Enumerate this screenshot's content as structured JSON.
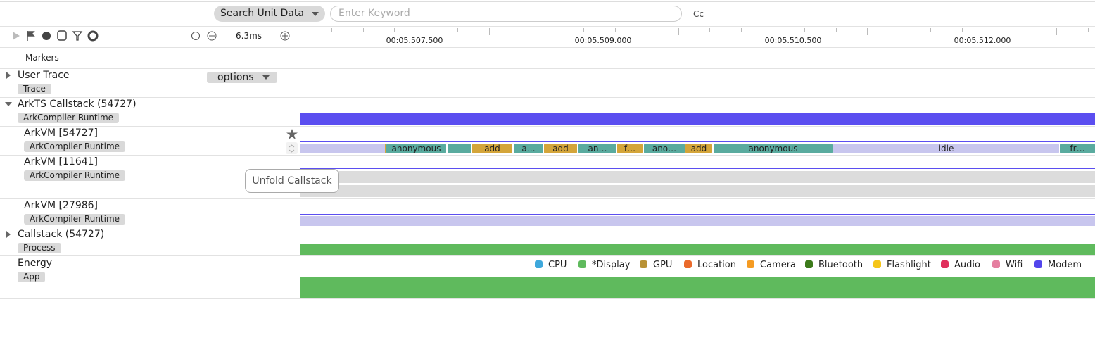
{
  "toolbar": {
    "search_mode": "Search Unit Data",
    "search_placeholder": "Enter Keyword",
    "case_toggle": "Cc",
    "zoom_level": "6.3ms"
  },
  "timeline": {
    "ticks": [
      "00:05.507.500",
      "00:05.509.000",
      "00:05.510.500",
      "00:05.512.000"
    ]
  },
  "tracks": [
    {
      "name": "Markers"
    },
    {
      "name": "User Trace",
      "tag": "Trace",
      "button": "options"
    },
    {
      "name": "ArkTS Callstack (54727)",
      "tag": "ArkCompiler Runtime"
    },
    {
      "name": "ArkVM [54727]",
      "tag": "ArkCompiler Runtime"
    },
    {
      "name": "ArkVM [11641]",
      "tag": "ArkCompiler Runtime"
    },
    {
      "name": "ArkVM [27986]",
      "tag": "ArkCompiler Runtime"
    },
    {
      "name": "Callstack (54727)",
      "tag": "Process"
    },
    {
      "name": "Energy",
      "tag": "App"
    }
  ],
  "slices": [
    {
      "label": "anonymous",
      "color": "#5aab9f"
    },
    {
      "label": "add",
      "color": "#d4a53a"
    },
    {
      "label": "a…",
      "color": "#5aab9f"
    },
    {
      "label": "add",
      "color": "#d4a53a"
    },
    {
      "label": "an…",
      "color": "#5aab9f"
    },
    {
      "label": "f…",
      "color": "#d4a53a"
    },
    {
      "label": "ano…",
      "color": "#5aab9f"
    },
    {
      "label": "add",
      "color": "#d4a53a"
    },
    {
      "label": "anonymous",
      "color": "#5aab9f"
    },
    {
      "label": "idle",
      "color": "#c8c6ee"
    },
    {
      "label": "fr…",
      "color": "#5aab9f"
    }
  ],
  "tooltip": "Unfold Callstack",
  "legend": [
    {
      "name": "CPU",
      "color": "#3ea8dc"
    },
    {
      "name": "*Display",
      "color": "#5fba5d"
    },
    {
      "name": "GPU",
      "color": "#b89236"
    },
    {
      "name": "Location",
      "color": "#ea6a2b"
    },
    {
      "name": "Camera",
      "color": "#f59b22"
    },
    {
      "name": "Bluetooth",
      "color": "#3c7a1a"
    },
    {
      "name": "Flashlight",
      "color": "#f5c518"
    },
    {
      "name": "Audio",
      "color": "#e0305d"
    },
    {
      "name": "Wifi",
      "color": "#e57fa0"
    },
    {
      "name": "Modem",
      "color": "#5245ec"
    }
  ]
}
